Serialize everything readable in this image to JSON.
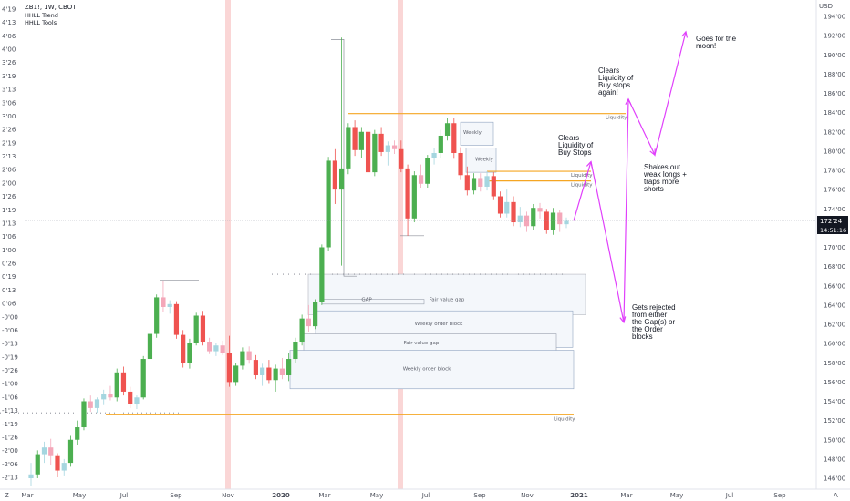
{
  "header": {
    "symbol_line": "ZB1!, 1W, CBOT",
    "indicators": [
      "HHLL Trend",
      "HHLL Tools"
    ]
  },
  "price_axis": {
    "unit_label": "USD",
    "ticks": [
      "194'00",
      "192'00",
      "190'00",
      "188'00",
      "186'00",
      "184'00",
      "182'00",
      "180'00",
      "178'00",
      "176'00",
      "174'00",
      "172'00",
      "170'00",
      "168'00",
      "166'00",
      "164'00",
      "162'00",
      "160'00",
      "158'00",
      "156'00",
      "154'00",
      "152'00",
      "150'00",
      "148'00",
      "146'00"
    ],
    "current_price": "172'24",
    "countdown": "14:51:16"
  },
  "spread_axis": {
    "ticks": [
      "4'19",
      "4'13",
      "4'06",
      "4'00",
      "3'26",
      "3'19",
      "3'13",
      "3'06",
      "3'00",
      "2'26",
      "2'19",
      "2'13",
      "2'06",
      "2'00",
      "1'26",
      "1'19",
      "1'13",
      "1'06",
      "1'00",
      "0'26",
      "0'19",
      "0'13",
      "0'06",
      "-0'00",
      "-0'06",
      "-0'13",
      "-0'19",
      "-0'26",
      "-1'00",
      "-1'06",
      "-1'13",
      "-1'19",
      "-1'26",
      "-2'00",
      "-2'06",
      "-2'13"
    ]
  },
  "time_axis": {
    "labels": [
      "Mar",
      "May",
      "Jul",
      "Sep",
      "Nov",
      "2020",
      "Mar",
      "May",
      "Jul",
      "Sep",
      "Nov",
      "2021",
      "Mar",
      "May",
      "Jul",
      "Sep"
    ],
    "corner_left": "Z",
    "corner_right": "A"
  },
  "zones": [
    {
      "name": "Fair value gap",
      "label": "Fair value gap"
    },
    {
      "name": "GAP",
      "label": "GAP"
    },
    {
      "name": "Weekly order block",
      "label": "Weekly order block"
    },
    {
      "name": "Fair value gap 2",
      "label": "Fair value gap"
    },
    {
      "name": "Weekly order block 2",
      "label": "Weekly order block"
    },
    {
      "name": "Weekly 1",
      "label": "Weekly"
    },
    {
      "name": "Weekly 2",
      "label": "Weekly"
    }
  ],
  "liquidity_labels": [
    "Liquidity",
    "Liquidity",
    "Liquidity",
    "Liquidity"
  ],
  "annotations": {
    "buy_stops": [
      "Clears",
      "Liquidity of",
      "Buy Stops"
    ],
    "buy_stops_again": [
      "Clears",
      "Liquidity of",
      "Buy stops",
      "again!"
    ],
    "shakes": [
      "Shakes out",
      "weak longs +",
      "traps more",
      "shorts"
    ],
    "moon": [
      "Goes for the",
      "moon!"
    ],
    "rejected": [
      "Gets rejected",
      "from either",
      "the Gap(s) or",
      "the Order",
      "blocks"
    ]
  },
  "colors": {
    "up": "#4caf50",
    "down": "#ef5350",
    "up_light": "#a5d6e0",
    "down_light": "#f4a7b9",
    "projection": "#e040fb",
    "liquidity": "#f5a623",
    "session_band": "#f8c8c8"
  },
  "chart_data": {
    "type": "candlestick",
    "note_units": "price in points (32nds shown on axis)",
    "y_axis_range": [
      145,
      195
    ],
    "projection_path_prices": [
      172.75,
      178.9,
      162.2,
      185.4,
      179.6,
      192.4
    ],
    "liquidity_levels": [
      183.9,
      177.9,
      176.9,
      152.6
    ],
    "candles": [
      {
        "o": 146.0,
        "h": 147.6,
        "l": 145.2,
        "c": 146.4
      },
      {
        "o": 146.4,
        "h": 148.9,
        "l": 146.0,
        "c": 148.5
      },
      {
        "o": 148.5,
        "h": 149.8,
        "l": 147.6,
        "c": 149.2
      },
      {
        "o": 149.2,
        "h": 150.1,
        "l": 147.4,
        "c": 148.3
      },
      {
        "o": 148.3,
        "h": 148.6,
        "l": 146.1,
        "c": 146.8
      },
      {
        "o": 146.8,
        "h": 148.0,
        "l": 146.2,
        "c": 147.6
      },
      {
        "o": 147.6,
        "h": 150.4,
        "l": 147.2,
        "c": 150.0
      },
      {
        "o": 150.0,
        "h": 152.0,
        "l": 149.5,
        "c": 151.3
      },
      {
        "o": 151.3,
        "h": 154.3,
        "l": 151.0,
        "c": 154.0
      },
      {
        "o": 154.0,
        "h": 154.6,
        "l": 152.9,
        "c": 153.3
      },
      {
        "o": 153.3,
        "h": 154.4,
        "l": 152.8,
        "c": 154.2
      },
      {
        "o": 154.2,
        "h": 155.2,
        "l": 153.6,
        "c": 154.8
      },
      {
        "o": 154.8,
        "h": 155.6,
        "l": 154.1,
        "c": 154.4
      },
      {
        "o": 154.4,
        "h": 157.4,
        "l": 154.0,
        "c": 157.0
      },
      {
        "o": 157.0,
        "h": 157.6,
        "l": 154.6,
        "c": 155.0
      },
      {
        "o": 155.0,
        "h": 155.5,
        "l": 153.3,
        "c": 153.7
      },
      {
        "o": 153.7,
        "h": 154.6,
        "l": 153.2,
        "c": 154.4
      },
      {
        "o": 154.4,
        "h": 158.7,
        "l": 154.2,
        "c": 158.4
      },
      {
        "o": 158.4,
        "h": 161.3,
        "l": 158.1,
        "c": 161.0
      },
      {
        "o": 161.0,
        "h": 165.1,
        "l": 160.6,
        "c": 164.8
      },
      {
        "o": 164.8,
        "h": 166.5,
        "l": 163.3,
        "c": 163.8
      },
      {
        "o": 163.8,
        "h": 164.5,
        "l": 163.1,
        "c": 164.1
      },
      {
        "o": 164.1,
        "h": 164.4,
        "l": 160.5,
        "c": 160.9
      },
      {
        "o": 160.9,
        "h": 161.4,
        "l": 157.5,
        "c": 158.0
      },
      {
        "o": 158.0,
        "h": 160.5,
        "l": 157.4,
        "c": 160.1
      },
      {
        "o": 160.1,
        "h": 163.2,
        "l": 159.8,
        "c": 162.9
      },
      {
        "o": 162.9,
        "h": 163.4,
        "l": 159.8,
        "c": 160.2
      },
      {
        "o": 160.2,
        "h": 160.6,
        "l": 158.9,
        "c": 159.2
      },
      {
        "o": 159.2,
        "h": 160.1,
        "l": 158.7,
        "c": 159.8
      },
      {
        "o": 159.8,
        "h": 160.3,
        "l": 158.8,
        "c": 159.0
      },
      {
        "o": 159.0,
        "h": 160.8,
        "l": 155.5,
        "c": 156.0
      },
      {
        "o": 156.0,
        "h": 158.0,
        "l": 155.6,
        "c": 157.7
      },
      {
        "o": 157.7,
        "h": 159.6,
        "l": 157.3,
        "c": 159.2
      },
      {
        "o": 159.2,
        "h": 159.7,
        "l": 157.9,
        "c": 158.3
      },
      {
        "o": 158.3,
        "h": 158.8,
        "l": 156.3,
        "c": 156.7
      },
      {
        "o": 156.7,
        "h": 157.9,
        "l": 155.6,
        "c": 157.5
      },
      {
        "o": 157.5,
        "h": 158.3,
        "l": 155.8,
        "c": 156.2
      },
      {
        "o": 156.2,
        "h": 157.8,
        "l": 155.0,
        "c": 157.4
      },
      {
        "o": 157.4,
        "h": 158.5,
        "l": 156.3,
        "c": 156.7
      },
      {
        "o": 156.7,
        "h": 159.0,
        "l": 156.1,
        "c": 158.4
      },
      {
        "o": 158.4,
        "h": 160.6,
        "l": 158.0,
        "c": 160.2
      },
      {
        "o": 160.2,
        "h": 163.0,
        "l": 159.8,
        "c": 162.6
      },
      {
        "o": 162.6,
        "h": 164.0,
        "l": 161.2,
        "c": 161.8
      },
      {
        "o": 161.8,
        "h": 164.6,
        "l": 161.5,
        "c": 164.3
      },
      {
        "o": 164.3,
        "h": 170.3,
        "l": 164.0,
        "c": 170.0
      },
      {
        "o": 170.0,
        "h": 179.4,
        "l": 169.6,
        "c": 179.0
      },
      {
        "o": 179.0,
        "h": 180.2,
        "l": 174.5,
        "c": 176.0
      },
      {
        "o": 176.0,
        "h": 191.8,
        "l": 168.1,
        "c": 178.2
      },
      {
        "o": 178.2,
        "h": 182.9,
        "l": 177.6,
        "c": 182.5
      },
      {
        "o": 182.5,
        "h": 183.2,
        "l": 179.5,
        "c": 180.1
      },
      {
        "o": 180.1,
        "h": 182.5,
        "l": 179.3,
        "c": 182.0
      },
      {
        "o": 182.0,
        "h": 182.6,
        "l": 177.3,
        "c": 177.8
      },
      {
        "o": 177.8,
        "h": 182.2,
        "l": 177.4,
        "c": 181.8
      },
      {
        "o": 181.8,
        "h": 182.5,
        "l": 179.5,
        "c": 179.9
      },
      {
        "o": 179.9,
        "h": 181.0,
        "l": 178.5,
        "c": 180.6
      },
      {
        "o": 180.6,
        "h": 181.1,
        "l": 179.7,
        "c": 180.2
      },
      {
        "o": 180.2,
        "h": 181.1,
        "l": 177.8,
        "c": 178.2
      },
      {
        "o": 178.2,
        "h": 178.6,
        "l": 171.2,
        "c": 173.0
      },
      {
        "o": 173.0,
        "h": 177.9,
        "l": 172.6,
        "c": 177.5
      },
      {
        "o": 177.5,
        "h": 178.6,
        "l": 176.2,
        "c": 176.6
      },
      {
        "o": 176.6,
        "h": 179.6,
        "l": 176.2,
        "c": 179.3
      },
      {
        "o": 179.3,
        "h": 180.3,
        "l": 178.6,
        "c": 179.8
      },
      {
        "o": 179.8,
        "h": 182.2,
        "l": 179.3,
        "c": 181.6
      },
      {
        "o": 181.6,
        "h": 183.4,
        "l": 181.1,
        "c": 182.9
      },
      {
        "o": 182.9,
        "h": 183.4,
        "l": 179.2,
        "c": 179.8
      },
      {
        "o": 179.8,
        "h": 180.4,
        "l": 177.0,
        "c": 177.5
      },
      {
        "o": 177.5,
        "h": 178.4,
        "l": 175.4,
        "c": 175.9
      },
      {
        "o": 175.9,
        "h": 177.7,
        "l": 175.5,
        "c": 177.2
      },
      {
        "o": 177.2,
        "h": 177.7,
        "l": 175.8,
        "c": 176.3
      },
      {
        "o": 176.3,
        "h": 177.9,
        "l": 175.9,
        "c": 177.4
      },
      {
        "o": 177.4,
        "h": 177.8,
        "l": 174.9,
        "c": 175.3
      },
      {
        "o": 175.3,
        "h": 175.8,
        "l": 173.1,
        "c": 173.5
      },
      {
        "o": 173.5,
        "h": 176.0,
        "l": 173.1,
        "c": 174.7
      },
      {
        "o": 174.7,
        "h": 175.3,
        "l": 172.2,
        "c": 172.6
      },
      {
        "o": 172.6,
        "h": 174.2,
        "l": 172.1,
        "c": 173.3
      },
      {
        "o": 173.3,
        "h": 173.7,
        "l": 171.6,
        "c": 172.2
      },
      {
        "o": 172.2,
        "h": 174.5,
        "l": 171.8,
        "c": 174.1
      },
      {
        "o": 174.1,
        "h": 174.6,
        "l": 173.0,
        "c": 173.7
      },
      {
        "o": 173.7,
        "h": 174.0,
        "l": 171.4,
        "c": 171.8
      },
      {
        "o": 171.8,
        "h": 174.1,
        "l": 171.3,
        "c": 173.6
      },
      {
        "o": 173.6,
        "h": 173.9,
        "l": 171.6,
        "c": 172.4
      },
      {
        "o": 172.4,
        "h": 173.1,
        "l": 172.0,
        "c": 172.75
      }
    ]
  }
}
